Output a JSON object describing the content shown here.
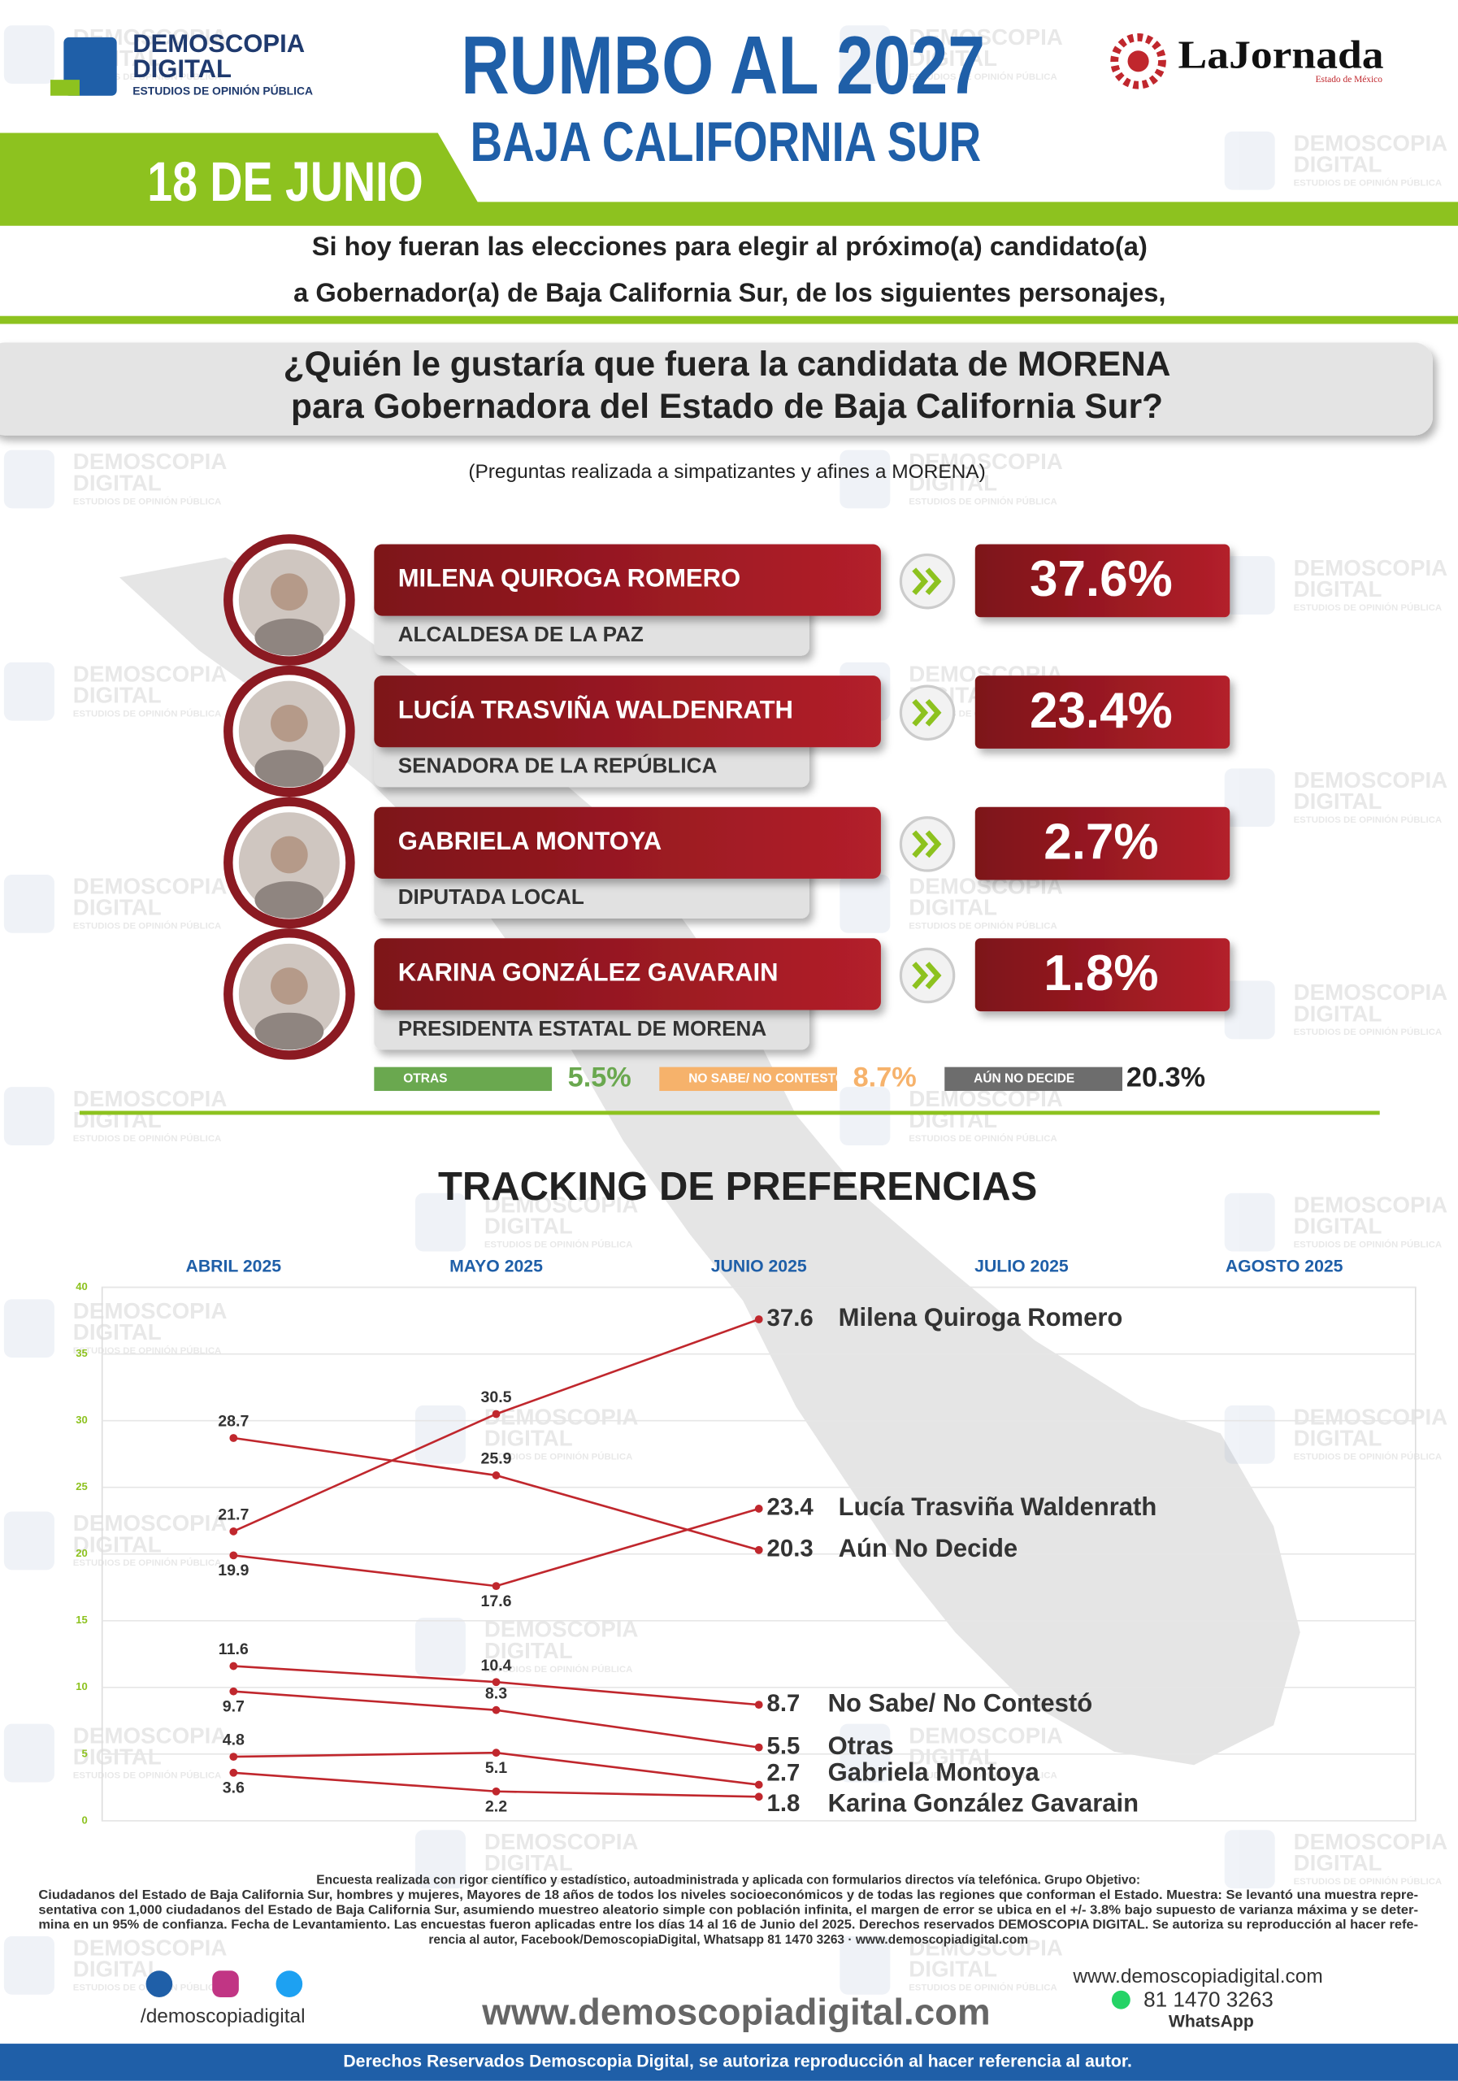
{
  "header": {
    "brand": "DEMOSCOPIA",
    "brand2": "DIGITAL",
    "brand_tag": "ESTUDIOS DE OPINIÓN PÚBLICA",
    "title": "RUMBO AL 2027",
    "subtitle": "BAJA CALIFORNIA SUR",
    "date": "18 DE JUNIO",
    "partner": "LaJornada",
    "partner_tag": "Estado de México"
  },
  "intro": [
    "Si hoy fueran las elecciones para elegir al próximo(a) candidato(a)",
    "a Gobernador(a) de Baja California Sur, de los siguientes personajes,"
  ],
  "question": [
    "¿Quién le gustaría que fuera la candidata de MORENA",
    "para Gobernadora del Estado de Baja California Sur?"
  ],
  "note": "(Preguntas realizada a simpatizantes y afines a MORENA)",
  "candidates": [
    {
      "name": "MILENA QUIROGA ROMERO",
      "role": "ALCALDESA DE LA PAZ",
      "result": "37.6%"
    },
    {
      "name": "LUCÍA TRASVIÑA WALDENRATH",
      "role": "SENADORA DE LA REPÚBLICA",
      "result": "23.4%"
    },
    {
      "name": "GABRIELA MONTOYA",
      "role": "DIPUTADA LOCAL",
      "result": "2.7%"
    },
    {
      "name": "KARINA GONZÁLEZ GAVARAIN",
      "role": "PRESIDENTA ESTATAL DE MORENA",
      "result": "1.8%"
    }
  ],
  "others": [
    {
      "label": "OTRAS",
      "result": "5.5%",
      "color": "#6aa84f"
    },
    {
      "label": "NO SABE/ NO CONTESTÓ",
      "result": "8.7%",
      "color": "#f6b26b"
    },
    {
      "label": "AÚN NO DECIDE",
      "result": "20.3%",
      "color": "#6d6d6d"
    }
  ],
  "chart_data": {
    "type": "line",
    "title": "TRACKING DE PREFERENCIAS",
    "categories": [
      "ABRIL 2025",
      "MAYO 2025",
      "JUNIO 2025",
      "JULIO 2025",
      "AGOSTO 2025"
    ],
    "ylim": [
      0,
      40
    ],
    "yticks": [
      0,
      5,
      10,
      15,
      20,
      25,
      30,
      35,
      40
    ],
    "grid": true,
    "series": [
      {
        "name": "Milena Quiroga Romero",
        "color": "#c0272d",
        "values": [
          21.7,
          30.5,
          37.6,
          null,
          null
        ]
      },
      {
        "name": "Lucía Trasviña Waldenrath",
        "color": "#c0272d",
        "values": [
          19.9,
          17.6,
          23.4,
          null,
          null
        ]
      },
      {
        "name": "Aún No Decide",
        "color": "#c0272d",
        "values": [
          28.7,
          25.9,
          20.3,
          null,
          null
        ]
      },
      {
        "name": "No Sabe/ No Contestó",
        "color": "#c0272d",
        "values": [
          11.6,
          10.4,
          8.7,
          null,
          null
        ]
      },
      {
        "name": "Otras",
        "color": "#c0272d",
        "values": [
          9.7,
          8.3,
          5.5,
          null,
          null
        ]
      },
      {
        "name": "Gabriela Montoya",
        "color": "#c0272d",
        "values": [
          4.8,
          5.1,
          2.7,
          null,
          null
        ]
      },
      {
        "name": "Karina González Gavarain",
        "color": "#c0272d",
        "values": [
          3.6,
          2.2,
          1.8,
          null,
          null
        ]
      }
    ]
  },
  "footer": {
    "methodology": [
      "Encuesta realizada con rigor científico y estadístico, autoadministrada y aplicada con formularios directos vía telefónica. Grupo Objetivo:",
      "Ciudadanos del Estado de Baja California Sur, hombres y mujeres, Mayores de 18 años de todos los niveles socioeconómicos y de todas las regiones que conforman el Estado. Muestra: Se levantó una muestra repre-",
      "sentativa con 1,000 ciudadanos del Estado de Baja California Sur, asumiendo muestreo aleatorio simple con población infinita, el margen de error se ubica en el +/- 3.8% bajo supuesto de varianza máxima y se deter-",
      "mina en un 95% de confianza. Fecha de Levantamiento. Las encuestas fueron aplicadas entre los días 14 al 16 de Junio del 2025. Derechos reservados DEMOSCOPIA DIGITAL. Se autoriza su reproducción al hacer refe-",
      "rencia al autor, Facebook/DemoscopiaDigital, Whatsapp 81 1470 3263 · www.demoscopiadigital.com"
    ],
    "social": "/demoscopiadigital",
    "website": "www.demoscopiadigital.com",
    "site_small": "www.demoscopiadigital.com",
    "phone": "81 1470 3263",
    "whatsapp": "WhatsApp",
    "rights": "Derechos Reservados Demoscopia Digital, se autoriza reproducción al hacer referencia al autor."
  },
  "watermark": {
    "line1": "DEMOSCOPIA",
    "line2": "DIGITAL",
    "line3": "ESTUDIOS DE OPINIÓN PÚBLICA"
  }
}
